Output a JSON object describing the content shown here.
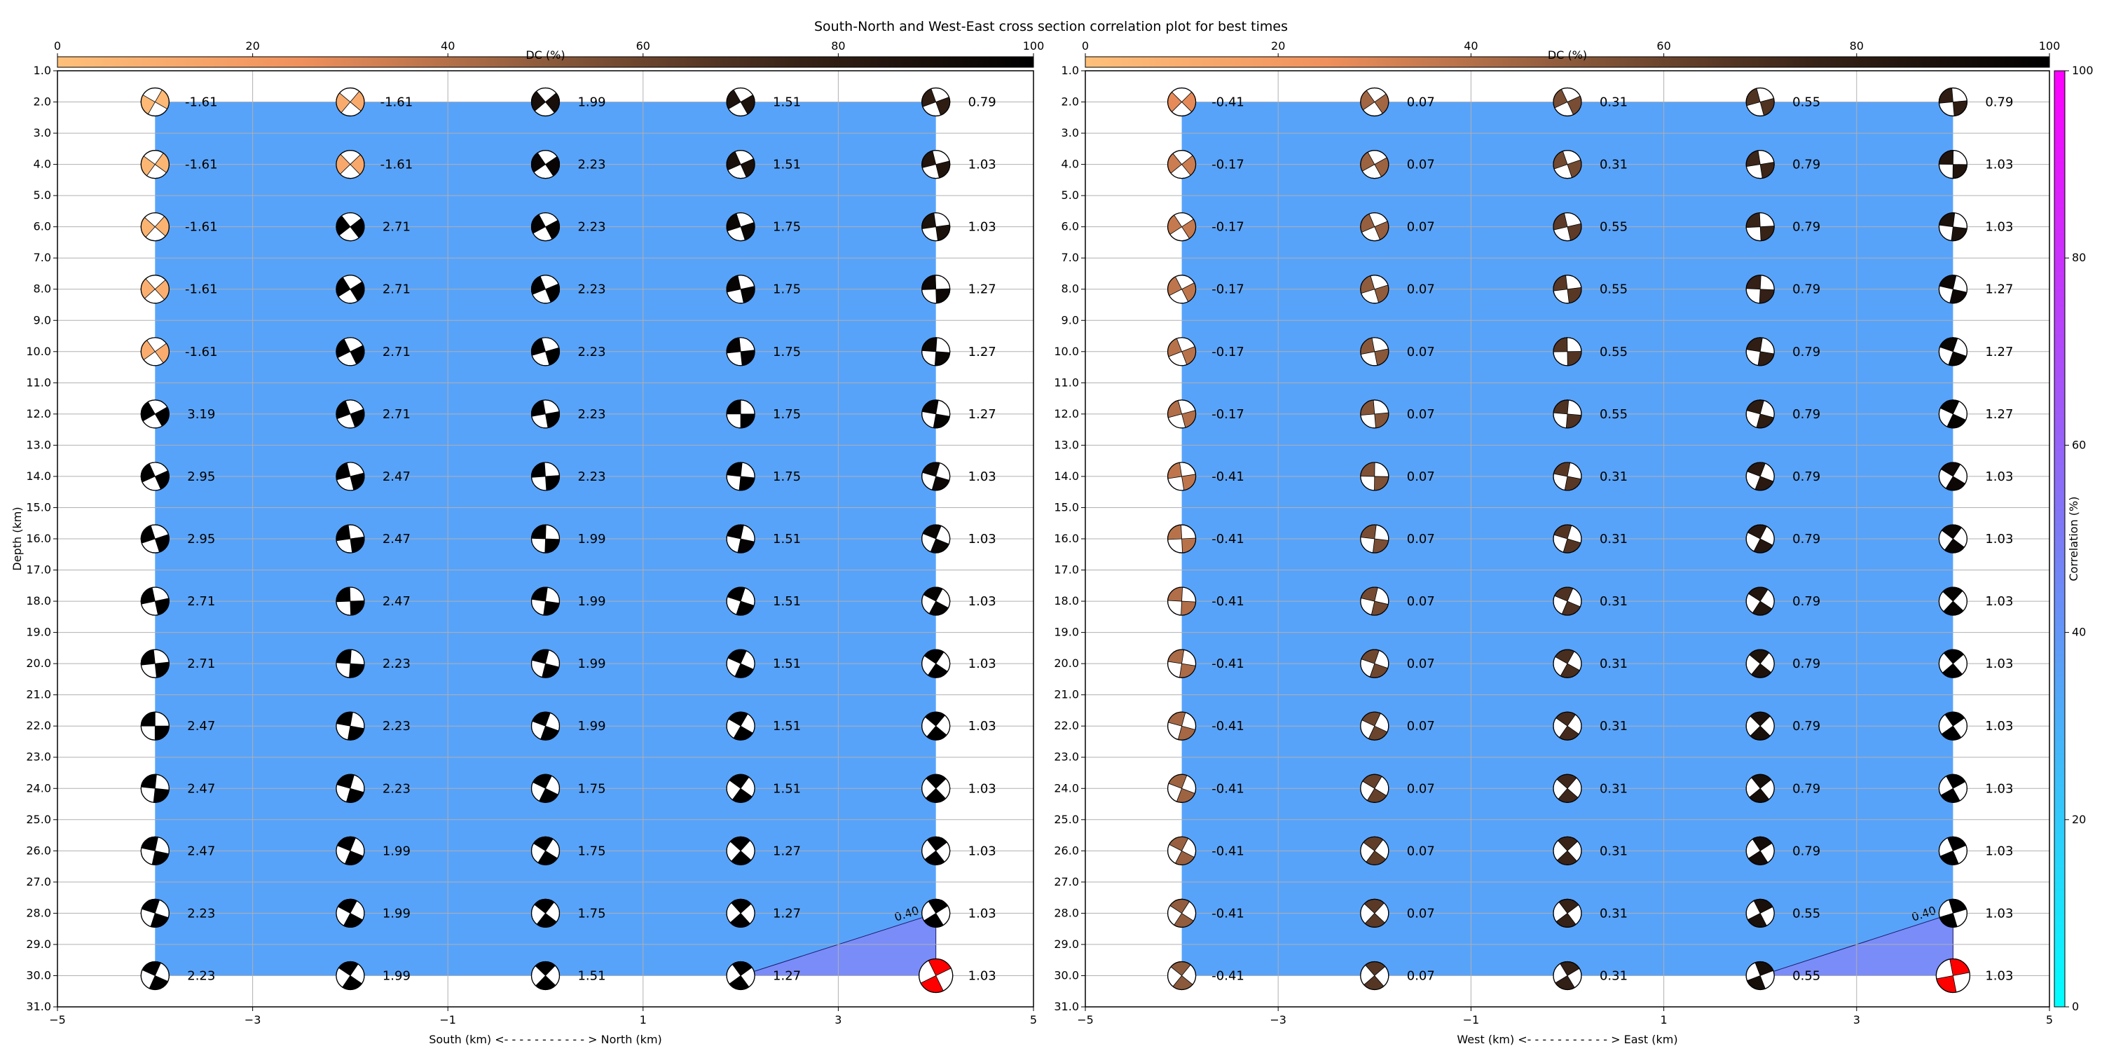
{
  "title": "South-North and West-East cross section correlation plot for best times",
  "colors": {
    "contour_fill": "#58a3fa",
    "contour_hot": "#7a8cf8",
    "dc_stops": [
      "#ffc07a",
      "#f0905c",
      "#8c5a3c",
      "#3a2418",
      "#000000"
    ],
    "corr_stops": [
      "#00ffff",
      "#7b7cf6",
      "#ff00ff"
    ],
    "best_solution": "#ff0000",
    "grid": "#b0b0b0"
  },
  "depth_axis": {
    "label": "Depth (km)",
    "ticks": [
      "1.0",
      "2.0",
      "3.0",
      "4.0",
      "5.0",
      "6.0",
      "7.0",
      "8.0",
      "9.0",
      "10.0",
      "11.0",
      "12.0",
      "13.0",
      "14.0",
      "15.0",
      "16.0",
      "17.0",
      "18.0",
      "19.0",
      "20.0",
      "21.0",
      "22.0",
      "23.0",
      "24.0",
      "25.0",
      "26.0",
      "27.0",
      "28.0",
      "29.0",
      "30.0",
      "31.0"
    ]
  },
  "dc_colorbar": {
    "label": "DC (%)",
    "ticks": [
      "0",
      "20",
      "40",
      "60",
      "80",
      "100"
    ]
  },
  "corr_colorbar": {
    "label": "Correlation (%)",
    "ticks": [
      "0",
      "20",
      "40",
      "60",
      "80",
      "100"
    ]
  },
  "contour_label": "0.40",
  "chart_data": [
    {
      "type": "heatmap",
      "name": "south-north",
      "xlabel": "South (km) <- - - - - - - - - - - > North (km)",
      "ylabel": "Depth (km)",
      "xlim": [
        -5,
        5
      ],
      "ylim": [
        31,
        1
      ],
      "xticks": [
        "−5",
        "−3",
        "−1",
        "1",
        "3",
        "5"
      ],
      "x": [
        -4,
        -2,
        0,
        2,
        4
      ],
      "depths": [
        2,
        4,
        6,
        8,
        10,
        12,
        14,
        16,
        18,
        20,
        22,
        24,
        26,
        28,
        30
      ],
      "values": [
        [
          "-1.61",
          "-1.61",
          "1.99",
          "1.51",
          "0.79"
        ],
        [
          "-1.61",
          "-1.61",
          "2.23",
          "1.51",
          "1.03"
        ],
        [
          "-1.61",
          "2.71",
          "2.23",
          "1.75",
          "1.03"
        ],
        [
          "-1.61",
          "2.71",
          "2.23",
          "1.75",
          "1.27"
        ],
        [
          "-1.61",
          "2.71",
          "2.23",
          "1.75",
          "1.27"
        ],
        [
          "3.19",
          "2.71",
          "2.23",
          "1.75",
          "1.27"
        ],
        [
          "2.95",
          "2.47",
          "2.23",
          "1.75",
          "1.03"
        ],
        [
          "2.95",
          "2.47",
          "1.99",
          "1.51",
          "1.03"
        ],
        [
          "2.71",
          "2.47",
          "1.99",
          "1.51",
          "1.03"
        ],
        [
          "2.71",
          "2.23",
          "1.99",
          "1.51",
          "1.03"
        ],
        [
          "2.47",
          "2.23",
          "1.99",
          "1.51",
          "1.03"
        ],
        [
          "2.47",
          "2.23",
          "1.75",
          "1.51",
          "1.03"
        ],
        [
          "2.47",
          "1.99",
          "1.75",
          "1.27",
          "1.03"
        ],
        [
          "2.23",
          "1.99",
          "1.75",
          "1.27",
          "1.03"
        ],
        [
          "2.23",
          "1.99",
          "1.51",
          "1.27",
          "1.03"
        ]
      ],
      "best": {
        "x": 4,
        "depth": 30
      }
    },
    {
      "type": "heatmap",
      "name": "west-east",
      "xlabel": "West (km) <- - - - - - - - - - - > East (km)",
      "ylabel": "Depth (km)",
      "xlim": [
        -5,
        5
      ],
      "ylim": [
        31,
        1
      ],
      "xticks": [
        "−5",
        "−3",
        "−1",
        "1",
        "3",
        "5"
      ],
      "x": [
        -4,
        -2,
        0,
        2,
        4
      ],
      "depths": [
        2,
        4,
        6,
        8,
        10,
        12,
        14,
        16,
        18,
        20,
        22,
        24,
        26,
        28,
        30
      ],
      "values": [
        [
          "-0.41",
          "0.07",
          "0.31",
          "0.55",
          "0.79"
        ],
        [
          "-0.17",
          "0.07",
          "0.31",
          "0.79",
          "1.03"
        ],
        [
          "-0.17",
          "0.07",
          "0.55",
          "0.79",
          "1.03"
        ],
        [
          "-0.17",
          "0.07",
          "0.55",
          "0.79",
          "1.27"
        ],
        [
          "-0.17",
          "0.07",
          "0.55",
          "0.79",
          "1.27"
        ],
        [
          "-0.17",
          "0.07",
          "0.55",
          "0.79",
          "1.27"
        ],
        [
          "-0.41",
          "0.07",
          "0.31",
          "0.79",
          "1.03"
        ],
        [
          "-0.41",
          "0.07",
          "0.31",
          "0.79",
          "1.03"
        ],
        [
          "-0.41",
          "0.07",
          "0.31",
          "0.79",
          "1.03"
        ],
        [
          "-0.41",
          "0.07",
          "0.31",
          "0.79",
          "1.03"
        ],
        [
          "-0.41",
          "0.07",
          "0.31",
          "0.79",
          "1.03"
        ],
        [
          "-0.41",
          "0.07",
          "0.31",
          "0.79",
          "1.03"
        ],
        [
          "-0.41",
          "0.07",
          "0.31",
          "0.79",
          "1.03"
        ],
        [
          "-0.41",
          "0.07",
          "0.31",
          "0.55",
          "1.03"
        ],
        [
          "-0.41",
          "0.07",
          "0.31",
          "0.55",
          "1.03"
        ]
      ],
      "best": {
        "x": 4,
        "depth": 30
      }
    }
  ]
}
